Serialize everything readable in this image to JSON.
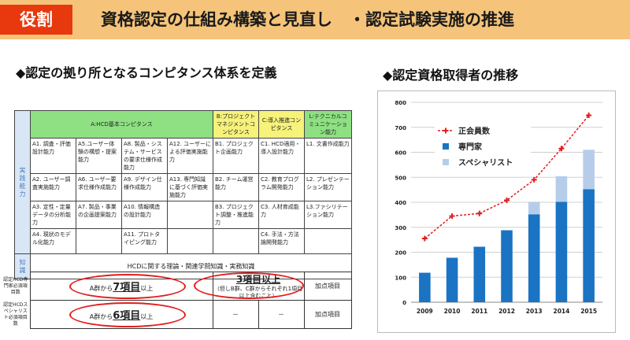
{
  "header": {
    "tag": "役割",
    "title": "資格認定の仕組み構築と見直し　・認定試験実施の推進"
  },
  "left": {
    "heading": "◆認定の拠り所となるコンピタンス体系を定義",
    "table": {
      "headers": {
        "a": "A:HCD基本コンピタンス",
        "b": "B:プロジェクトマネジメントコンピタンス",
        "c": "C:導入推進コンピタンス",
        "l": "L:テクニカルコミュニケーション能力"
      },
      "side_practical": "実践能力",
      "side_knowledge": "知識",
      "cells": {
        "a1": "A1. 調査・評価設計能力",
        "a5": "A5.ユーザー体験の構想・提案能力",
        "a8": "A8. 製品・システム・サービスの要求仕様作成能力",
        "a12": "A12. ユーザーによる評価実施能力",
        "b1": "B1. プロジェクト企画能力",
        "c1": "C1. HCD適用・導入設計能力",
        "l1": "L1. 文書作成能力",
        "a2": "A2. ユーザー調査実施能力",
        "a6": "A6. ユーザー要求仕様作成能力",
        "a9": "A9. デザイン仕様作成能力",
        "a13": "A13. 専門知識に基づく評価実施能力",
        "b2": "B2. チーム運営能力",
        "c2": "C2. 教育プログラム開発能力",
        "l2": "L2. プレゼンテーション能力",
        "a3": "A3. 定性・定量データの分析能力",
        "a7": "A7. 製品・事業の企画提案能力",
        "a10": "A10. 情報構造の設計能力",
        "b3": "B3. プロジェクト調整・推進能力",
        "c3": "C3. 人材育成能力",
        "l3": "L3.ファシリテーション能力",
        "a4": "A4. 現状のモデル化能力",
        "a11": "A11. プロトタイピング能力",
        "c4": "C4. 手法・方法論開発能力",
        "knowledge": "HCDに関する理論・関連学問知識・実務知識"
      }
    },
    "requirements": {
      "row1_label": "認定HCD専門家必須項目数",
      "row2_label": "認定HCDスペシャリスト必須項目数",
      "row1": {
        "pre": "A群から",
        "num": "7項目",
        "post": "以上",
        "bc_main": "3項目以上",
        "bc_note": "（但しB群、C群からそれぞれ1項目以上含むこと）",
        "plus": "加点項目"
      },
      "row2": {
        "pre": "A群から",
        "num": "6項目",
        "post": "以上",
        "b": "－",
        "c": "－",
        "plus": "加点項目"
      }
    }
  },
  "right": {
    "heading": "◆認定資格取得者の推移"
  },
  "chart_data": {
    "type": "bar",
    "categories": [
      "2009",
      "2010",
      "2011",
      "2012",
      "2013",
      "2014",
      "2015"
    ],
    "series": [
      {
        "name": "専門家",
        "kind": "bar",
        "stack": true,
        "values": [
          118,
          178,
          222,
          288,
          352,
          402,
          452
        ],
        "color": "#1a73c3"
      },
      {
        "name": "スペシャリスト",
        "kind": "bar",
        "stack": true,
        "values": [
          0,
          0,
          0,
          0,
          50,
          102,
          158
        ],
        "color": "#b6cdea"
      },
      {
        "name": "正会員数",
        "kind": "line",
        "values": [
          255,
          345,
          355,
          408,
          490,
          615,
          748
        ],
        "color": "#e21d1d"
      }
    ],
    "legend_order": [
      "正会員数",
      "専門家",
      "スペシャリスト"
    ],
    "ylim": [
      0,
      800
    ],
    "yticks": [
      0,
      100,
      200,
      300,
      400,
      500,
      600,
      700,
      800
    ],
    "grid": true,
    "legend_position": "top-left"
  }
}
